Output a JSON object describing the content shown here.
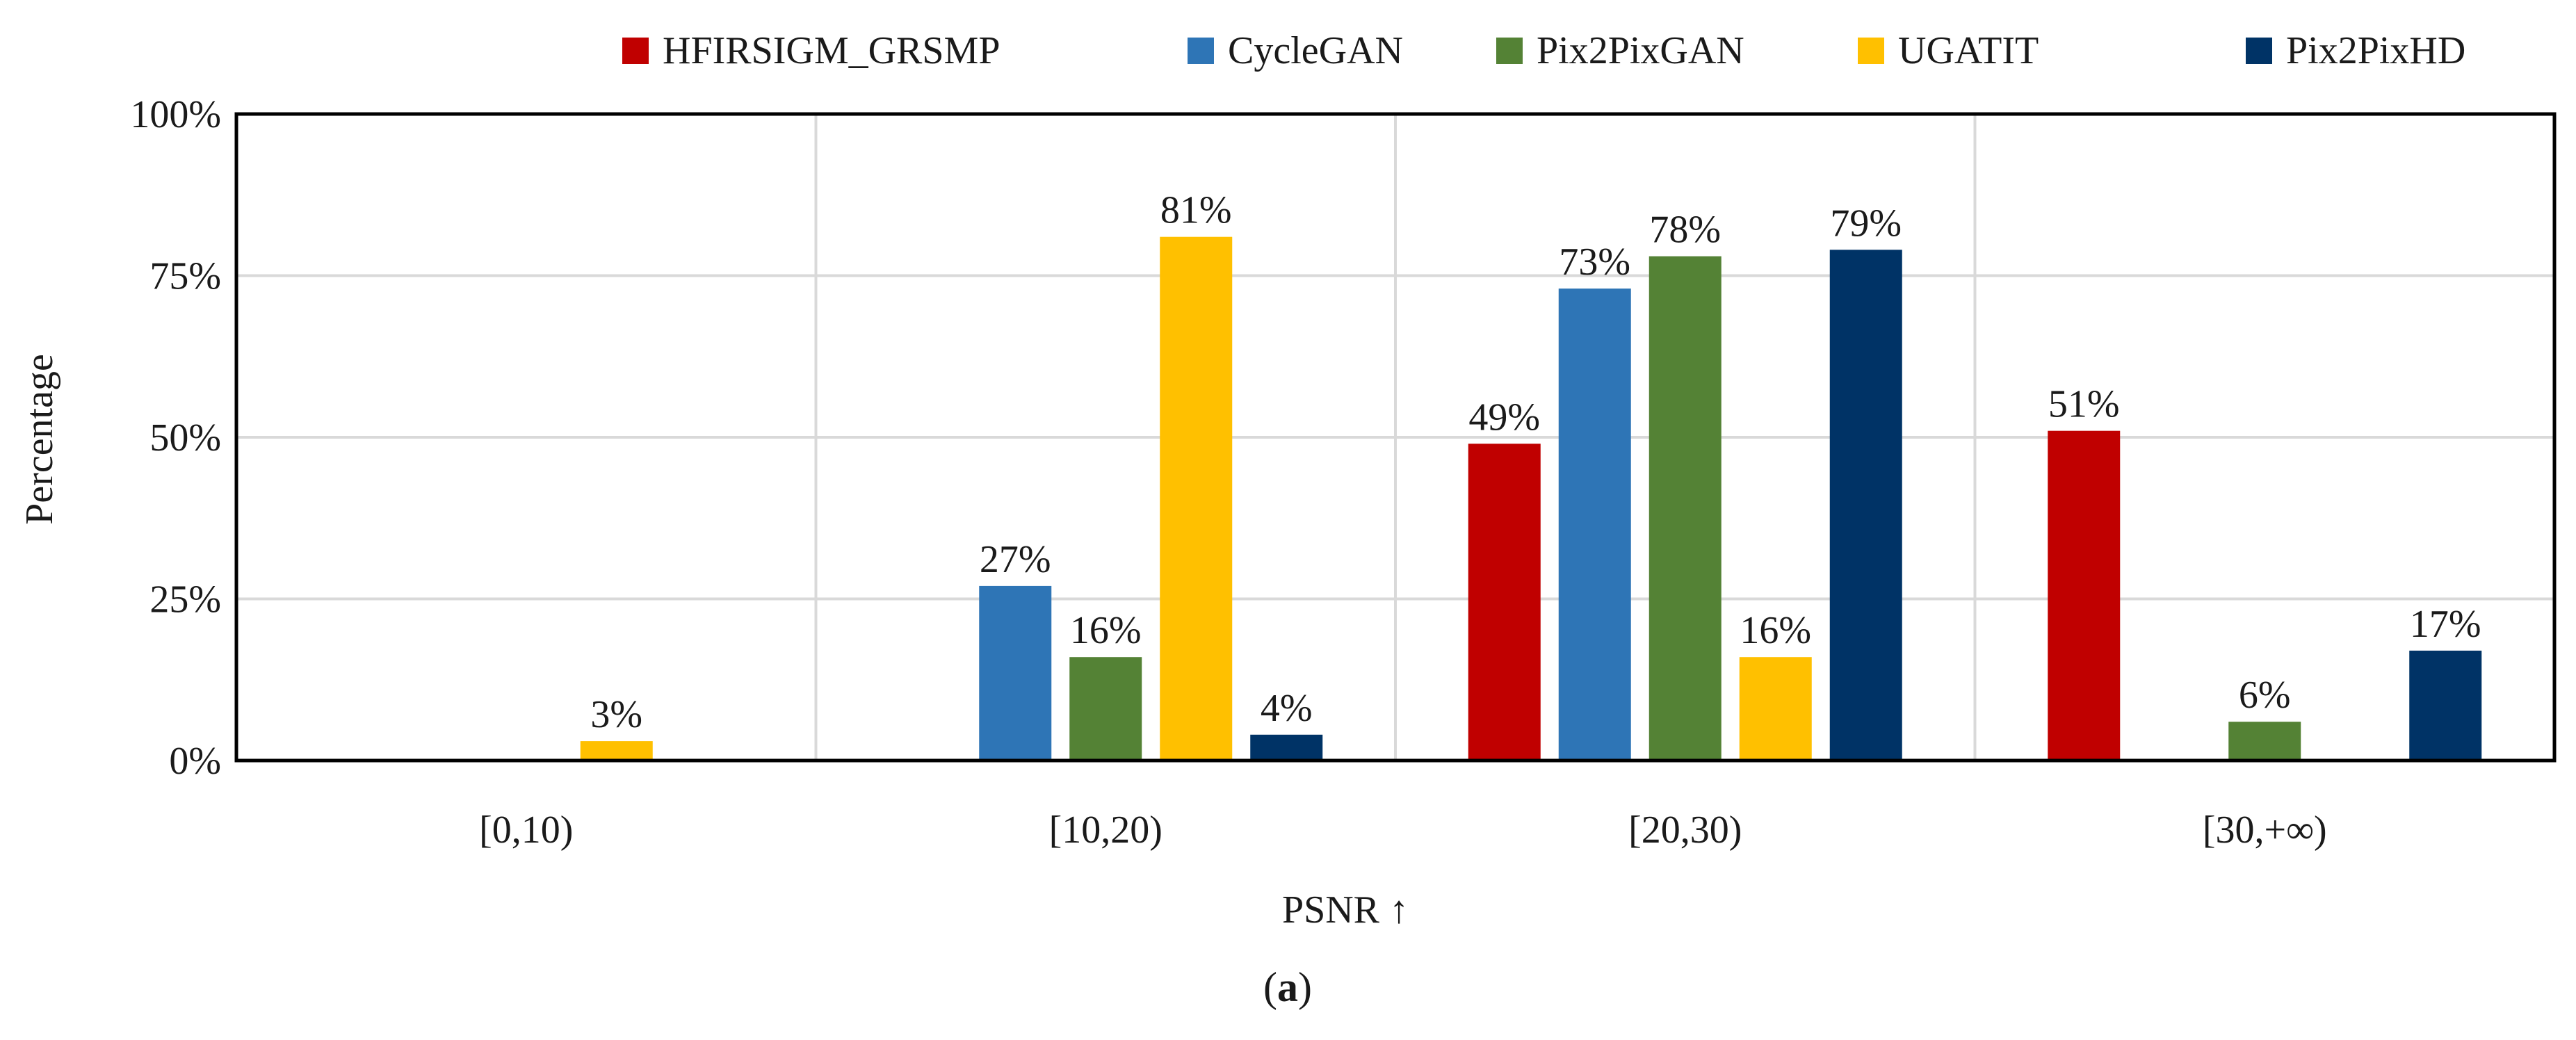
{
  "chart_data": {
    "type": "bar",
    "categories": [
      "[0,10)",
      "[10,20)",
      "[20,30)",
      "[30,+∞)"
    ],
    "series": [
      {
        "name": "HFIRSIGM_GRSMP",
        "color": "#C00000",
        "values": [
          0,
          0,
          49,
          51
        ]
      },
      {
        "name": "CycleGAN",
        "color": "#2E75B6",
        "values": [
          0,
          27,
          73,
          0
        ]
      },
      {
        "name": "Pix2PixGAN",
        "color": "#548235",
        "values": [
          0,
          16,
          78,
          6
        ]
      },
      {
        "name": "UGATIT",
        "color": "#FFC000",
        "values": [
          3,
          81,
          16,
          0
        ]
      },
      {
        "name": "Pix2PixHD",
        "color": "#003366",
        "values": [
          0,
          4,
          79,
          17
        ]
      }
    ],
    "xlabel": "PSNR ↑",
    "ylabel": "Percentage",
    "ylim": [
      0,
      100
    ],
    "yticks": [
      "0%",
      "25%",
      "50%",
      "75%",
      "100%"
    ],
    "ytick_values": [
      0,
      25,
      50,
      75,
      100
    ],
    "value_suffix": "%",
    "legend_position": "top-right",
    "grid": true
  },
  "caption": {
    "open": "(",
    "letter": "a",
    "close": ")"
  }
}
